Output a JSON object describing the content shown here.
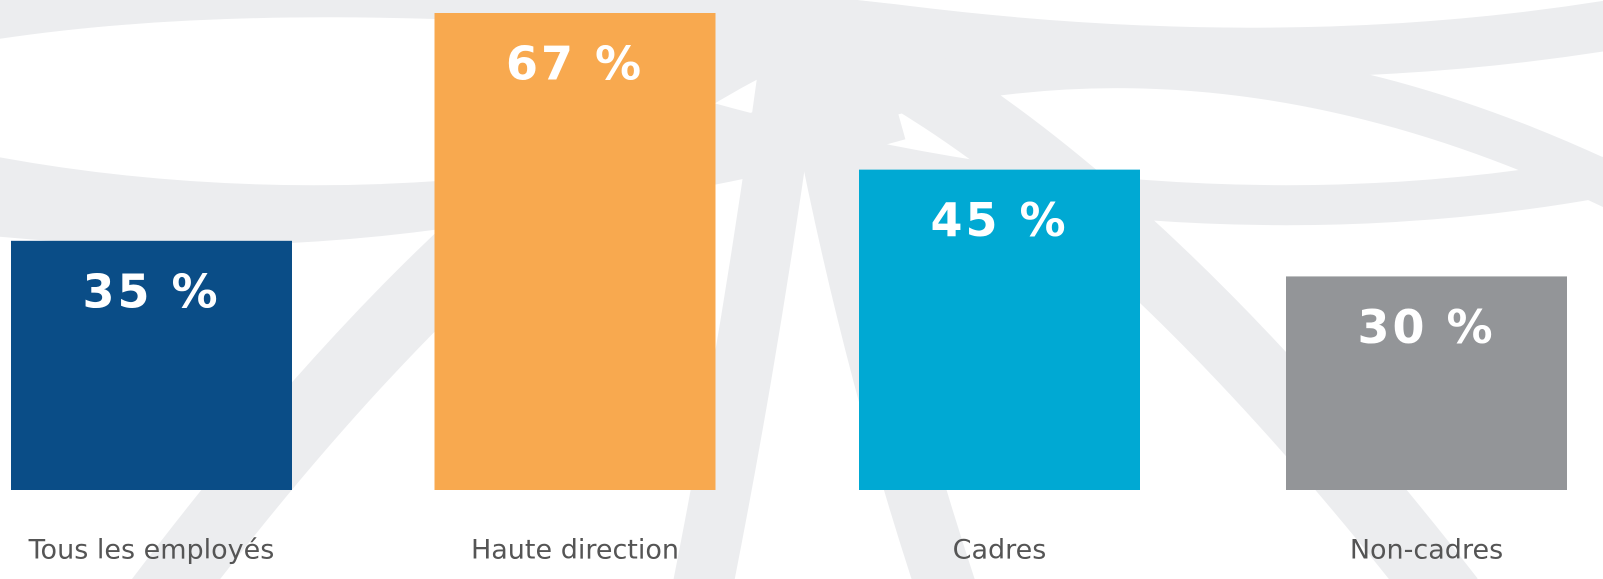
{
  "chart_data": {
    "type": "bar",
    "categories": [
      "Tous les employés",
      "Haute direction",
      "Cadres",
      "Non-cadres"
    ],
    "values": [
      35,
      67,
      45,
      30
    ],
    "value_labels": [
      "35 %",
      "67 %",
      "45 %",
      "30 %"
    ],
    "colors": [
      "#0a4d87",
      "#f8a94f",
      "#00a9d3",
      "#939598"
    ]
  }
}
